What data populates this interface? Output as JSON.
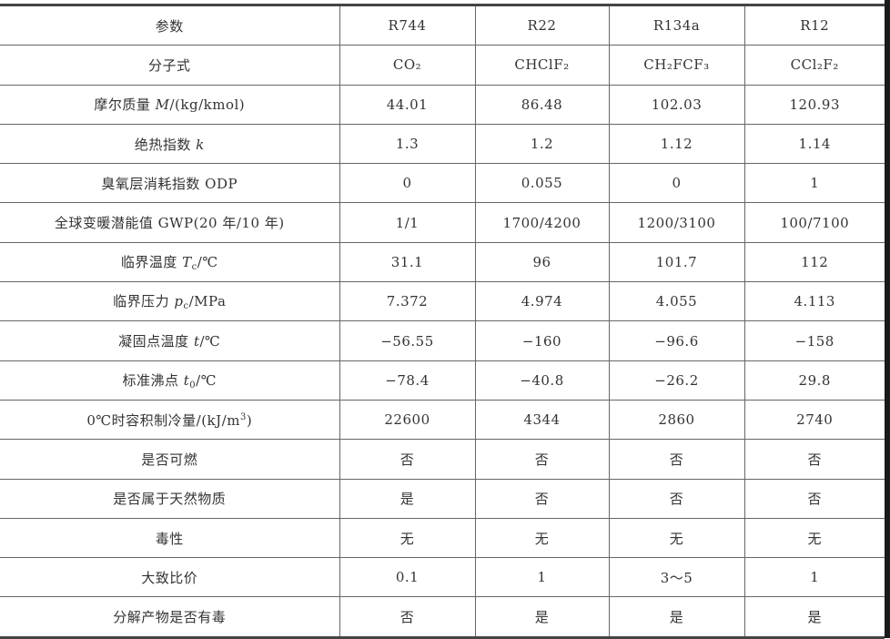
{
  "table": {
    "header": [
      "参数",
      "R744",
      "R22",
      "R134a",
      "R12"
    ],
    "rows": [
      {
        "label": [
          {
            "t": "分子式"
          }
        ],
        "values": [
          "CO₂",
          "CHClF₂",
          "CH₂FCF₃",
          "CCl₂F₂"
        ]
      },
      {
        "label": [
          {
            "t": "摩尔质量 "
          },
          {
            "t": "M",
            "s": "it"
          },
          {
            "t": "/(kg/kmol)"
          }
        ],
        "values": [
          "44.01",
          "86.48",
          "102.03",
          "120.93"
        ]
      },
      {
        "label": [
          {
            "t": "绝热指数 "
          },
          {
            "t": "k",
            "s": "it"
          }
        ],
        "values": [
          "1.3",
          "1.2",
          "1.12",
          "1.14"
        ]
      },
      {
        "label": [
          {
            "t": "臭氧层消耗指数 ODP"
          }
        ],
        "values": [
          "0",
          "0.055",
          "0",
          "1"
        ]
      },
      {
        "label": [
          {
            "t": "全球变暖潜能值 GWP(20 年/10 年)"
          }
        ],
        "values": [
          "1/1",
          "1700/4200",
          "1200/3100",
          "100/7100"
        ]
      },
      {
        "label": [
          {
            "t": "临界温度 "
          },
          {
            "t": "T",
            "s": "it"
          },
          {
            "t": "c",
            "s": "sub"
          },
          {
            "t": "/℃"
          }
        ],
        "values": [
          "31.1",
          "96",
          "101.7",
          "112"
        ]
      },
      {
        "label": [
          {
            "t": "临界压力 "
          },
          {
            "t": "p",
            "s": "it"
          },
          {
            "t": "c",
            "s": "sub"
          },
          {
            "t": "/MPa"
          }
        ],
        "values": [
          "7.372",
          "4.974",
          "4.055",
          "4.113"
        ]
      },
      {
        "label": [
          {
            "t": "凝固点温度 "
          },
          {
            "t": "t",
            "s": "it"
          },
          {
            "t": "/℃"
          }
        ],
        "values": [
          "−56.55",
          "−160",
          "−96.6",
          "−158"
        ]
      },
      {
        "label": [
          {
            "t": "标准沸点 "
          },
          {
            "t": "t",
            "s": "it"
          },
          {
            "t": "0",
            "s": "sub"
          },
          {
            "t": "/℃"
          }
        ],
        "values": [
          "−78.4",
          "−40.8",
          "−26.2",
          "29.8"
        ]
      },
      {
        "label": [
          {
            "t": "0℃时容积制冷量/(kJ/m"
          },
          {
            "t": "3",
            "s": "sup"
          },
          {
            "t": ")"
          }
        ],
        "values": [
          "22600",
          "4344",
          "2860",
          "2740"
        ]
      },
      {
        "label": [
          {
            "t": "是否可燃"
          }
        ],
        "values": [
          "否",
          "否",
          "否",
          "否"
        ]
      },
      {
        "label": [
          {
            "t": "是否属于天然物质"
          }
        ],
        "values": [
          "是",
          "否",
          "否",
          "否"
        ]
      },
      {
        "label": [
          {
            "t": "毒性"
          }
        ],
        "values": [
          "无",
          "无",
          "无",
          "无"
        ]
      },
      {
        "label": [
          {
            "t": "大致比价"
          }
        ],
        "values": [
          "0.1",
          "1",
          "3～5",
          "1"
        ]
      },
      {
        "label": [
          {
            "t": "分解产物是否有毒"
          }
        ],
        "values": [
          "否",
          "是",
          "是",
          "是"
        ]
      }
    ]
  }
}
